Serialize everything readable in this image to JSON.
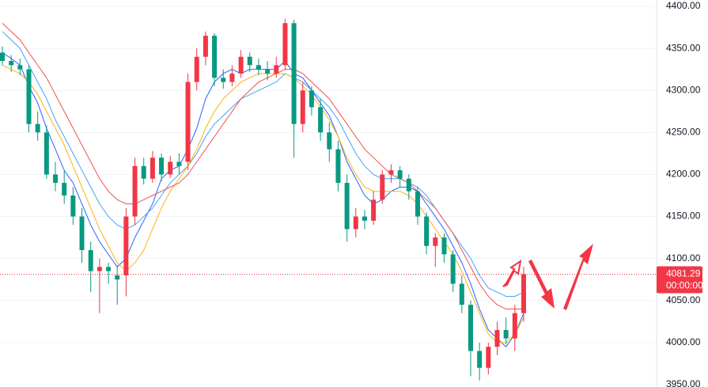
{
  "chart_data": {
    "type": "candlestick",
    "up_color": "#f23645",
    "down_color": "#089981",
    "ylim": [
      3950,
      4400
    ],
    "yticks": [
      {
        "value": 3950,
        "label": "3950.00"
      },
      {
        "value": 4000,
        "label": "4000.00"
      },
      {
        "value": 4050,
        "label": "4050.00"
      },
      {
        "value": 4100,
        "label": "4100.00"
      },
      {
        "value": 4150,
        "label": "4150.00"
      },
      {
        "value": 4200,
        "label": "4200.00"
      },
      {
        "value": 4250,
        "label": "4250.00"
      },
      {
        "value": 4300,
        "label": "4300.00"
      },
      {
        "value": 4350,
        "label": "4350.00"
      },
      {
        "value": 4400,
        "label": "4400.00"
      }
    ],
    "grid": true,
    "countdown": "00:00:00",
    "candles": [
      [
        4345,
        4352,
        4330,
        4335
      ],
      [
        4335,
        4342,
        4322,
        4330
      ],
      [
        4330,
        4338,
        4318,
        4325
      ],
      [
        4325,
        4330,
        4250,
        4260
      ],
      [
        4260,
        4275,
        4240,
        4250
      ],
      [
        4250,
        4258,
        4195,
        4200
      ],
      [
        4200,
        4215,
        4180,
        4190
      ],
      [
        4190,
        4205,
        4165,
        4175
      ],
      [
        4175,
        4185,
        4140,
        4150
      ],
      [
        4150,
        4160,
        4095,
        4110
      ],
      [
        4110,
        4120,
        4060,
        4085
      ],
      [
        4085,
        4100,
        4035,
        4090
      ],
      [
        4090,
        4095,
        4070,
        4085
      ],
      [
        4080,
        4092,
        4045,
        4075
      ],
      [
        4080,
        4160,
        4055,
        4150
      ],
      [
        4150,
        4220,
        4140,
        4210
      ],
      [
        4210,
        4220,
        4188,
        4195
      ],
      [
        4195,
        4228,
        4190,
        4220
      ],
      [
        4220,
        4225,
        4192,
        4200
      ],
      [
        4200,
        4222,
        4196,
        4215
      ],
      [
        4215,
        4225,
        4200,
        4210
      ],
      [
        4215,
        4320,
        4205,
        4310
      ],
      [
        4310,
        4350,
        4300,
        4340
      ],
      [
        4340,
        4370,
        4330,
        4365
      ],
      [
        4365,
        4368,
        4305,
        4315
      ],
      [
        4315,
        4325,
        4302,
        4310
      ],
      [
        4310,
        4330,
        4305,
        4320
      ],
      [
        4320,
        4348,
        4315,
        4340
      ],
      [
        4340,
        4345,
        4322,
        4330
      ],
      [
        4330,
        4338,
        4318,
        4325
      ],
      [
        4325,
        4335,
        4312,
        4320
      ],
      [
        4320,
        4340,
        4315,
        4330
      ],
      [
        4330,
        4385,
        4325,
        4380
      ],
      [
        4380,
        4384,
        4220,
        4260
      ],
      [
        4260,
        4310,
        4250,
        4300
      ],
      [
        4300,
        4305,
        4270,
        4280
      ],
      [
        4280,
        4290,
        4240,
        4250
      ],
      [
        4250,
        4262,
        4215,
        4230
      ],
      [
        4230,
        4240,
        4180,
        4190
      ],
      [
        4190,
        4200,
        4120,
        4135
      ],
      [
        4135,
        4160,
        4125,
        4150
      ],
      [
        4150,
        4158,
        4135,
        4145
      ],
      [
        4145,
        4180,
        4140,
        4170
      ],
      [
        4170,
        4205,
        4165,
        4200
      ],
      [
        4200,
        4212,
        4190,
        4205
      ],
      [
        4205,
        4210,
        4185,
        4195
      ],
      [
        4195,
        4200,
        4170,
        4180
      ],
      [
        4180,
        4185,
        4140,
        4150
      ],
      [
        4150,
        4155,
        4105,
        4115
      ],
      [
        4115,
        4130,
        4090,
        4125
      ],
      [
        4125,
        4130,
        4095,
        4105
      ],
      [
        4105,
        4110,
        4060,
        4070
      ],
      [
        4070,
        4080,
        4035,
        4045
      ],
      [
        4045,
        4050,
        3960,
        3990
      ],
      [
        3990,
        4000,
        3955,
        3970
      ],
      [
        3970,
        4000,
        3962,
        3995
      ],
      [
        3995,
        4025,
        3985,
        4015
      ],
      [
        4015,
        4030,
        3998,
        4005
      ],
      [
        4005,
        4045,
        3990,
        4035
      ],
      [
        4035,
        4090,
        4025,
        4081.29
      ]
    ],
    "series": [
      {
        "color": "#2962ff",
        "values": [
          4345,
          4338,
          4330,
          4305,
          4285,
          4255,
          4230,
          4205,
          4190,
          4165,
          4140,
          4120,
          4105,
          4090,
          4100,
          4125,
          4145,
          4165,
          4195,
          4205,
          4210,
          4230,
          4255,
          4290,
          4310,
          4320,
          4325,
          4320,
          4325,
          4325,
          4325,
          4325,
          4335,
          4320,
          4315,
          4300,
          4285,
          4270,
          4245,
          4215,
          4195,
          4175,
          4165,
          4170,
          4180,
          4185,
          4185,
          4180,
          4165,
          4150,
          4135,
          4115,
          4095,
          4070,
          4040,
          4015,
          4005,
          3995,
          4010,
          4035
        ]
      },
      {
        "color": "#42a5f5",
        "values": [
          4370,
          4360,
          4350,
          4330,
          4310,
          4290,
          4265,
          4245,
          4225,
          4205,
          4185,
          4165,
          4150,
          4140,
          4135,
          4140,
          4150,
          4160,
          4175,
          4190,
          4200,
          4210,
          4225,
          4245,
          4260,
          4270,
          4280,
          4290,
          4295,
          4300,
          4305,
          4310,
          4320,
          4315,
          4310,
          4300,
          4290,
          4280,
          4265,
          4245,
          4225,
          4210,
          4200,
          4195,
          4195,
          4195,
          4190,
          4185,
          4175,
          4160,
          4145,
          4130,
          4115,
          4100,
          4080,
          4065,
          4060,
          4055,
          4055,
          4060
        ]
      },
      {
        "color": "#f9b313",
        "values": [
          4330,
          4325,
          4320,
          4310,
          4295,
          4275,
          4255,
          4235,
          4210,
          4185,
          4160,
          4135,
          4115,
          4095,
          4085,
          4095,
          4110,
          4135,
          4160,
          4180,
          4195,
          4210,
          4230,
          4255,
          4275,
          4290,
          4300,
          4310,
          4315,
          4320,
          4320,
          4320,
          4320,
          4315,
          4305,
          4295,
          4280,
          4265,
          4245,
          4220,
          4200,
          4185,
          4180,
          4180,
          4180,
          4180,
          4175,
          4165,
          4150,
          4135,
          4120,
          4105,
          4085,
          4060,
          4035,
          4010,
          4000,
          4000,
          4010,
          4030
        ]
      },
      {
        "color": "#ef5350",
        "values": [
          4380,
          4370,
          4360,
          4345,
          4330,
          4315,
          4295,
          4275,
          4255,
          4235,
          4215,
          4195,
          4180,
          4170,
          4165,
          4165,
          4170,
          4175,
          4180,
          4185,
          4190,
          4200,
          4215,
          4230,
          4245,
          4260,
          4275,
          4290,
          4300,
          4310,
          4315,
          4320,
          4325,
          4325,
          4320,
          4310,
          4300,
          4290,
          4275,
          4260,
          4245,
          4230,
          4220,
          4210,
          4200,
          4195,
          4190,
          4180,
          4170,
          4160,
          4145,
          4130,
          4110,
          4090,
          4070,
          4055,
          4045,
          4040,
          4040,
          4040
        ]
      }
    ]
  }
}
